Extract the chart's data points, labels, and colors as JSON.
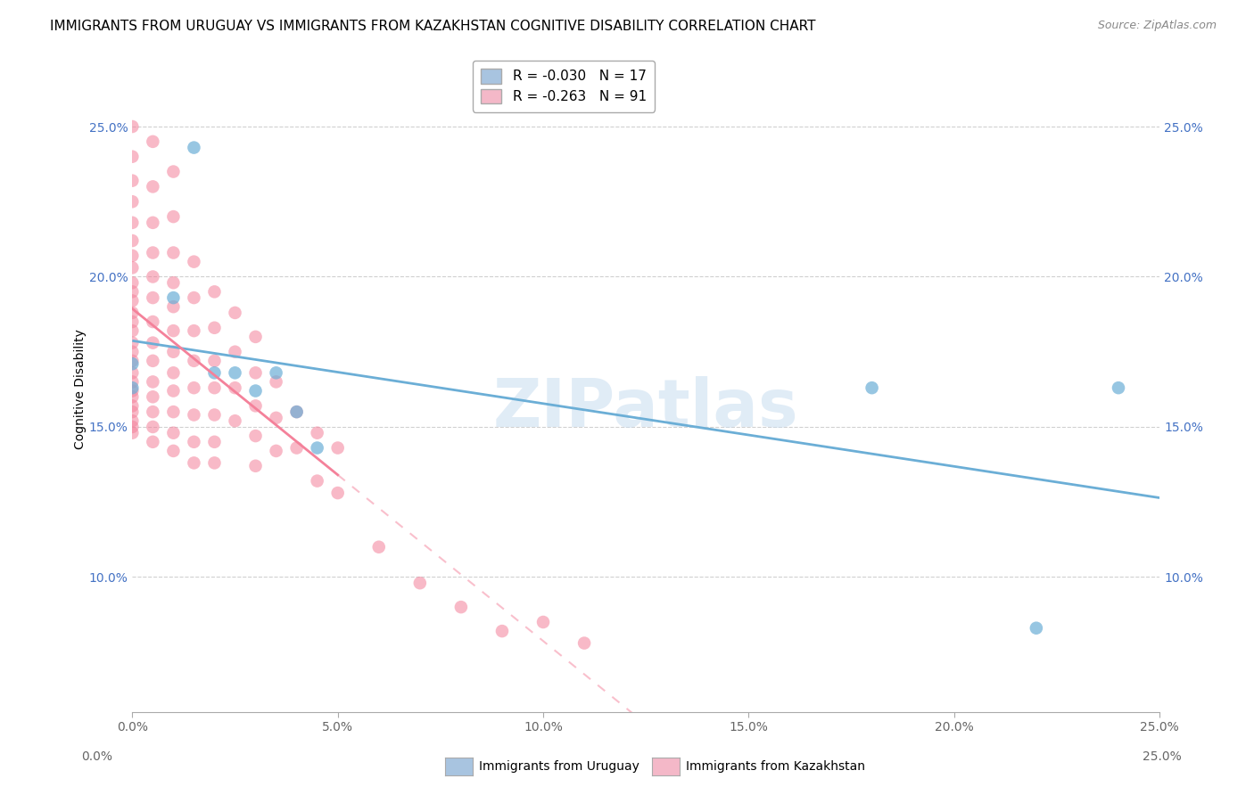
{
  "title": "IMMIGRANTS FROM URUGUAY VS IMMIGRANTS FROM KAZAKHSTAN COGNITIVE DISABILITY CORRELATION CHART",
  "source": "Source: ZipAtlas.com",
  "ylabel": "Cognitive Disability",
  "xlim": [
    0.0,
    0.25
  ],
  "ylim": [
    0.055,
    0.27
  ],
  "x_ticks": [
    0.0,
    0.05,
    0.1,
    0.15,
    0.2,
    0.25
  ],
  "x_tick_labels": [
    "0.0%",
    "5.0%",
    "10.0%",
    "15.0%",
    "20.0%",
    "25.0%"
  ],
  "y_ticks": [
    0.1,
    0.15,
    0.2,
    0.25
  ],
  "y_tick_labels": [
    "10.0%",
    "15.0%",
    "20.0%",
    "25.0%"
  ],
  "watermark": "ZIPatlas",
  "uruguay_color": "#6baed6",
  "kazakhstan_color": "#f4819a",
  "legend_uru_color": "#a8c4e0",
  "legend_kaz_color": "#f4b8c8",
  "uruguay_scatter": [
    [
      0.0,
      0.163
    ],
    [
      0.0,
      0.171
    ],
    [
      0.01,
      0.193
    ],
    [
      0.015,
      0.243
    ],
    [
      0.02,
      0.168
    ],
    [
      0.025,
      0.168
    ],
    [
      0.03,
      0.162
    ],
    [
      0.035,
      0.168
    ],
    [
      0.04,
      0.155
    ],
    [
      0.045,
      0.143
    ],
    [
      0.18,
      0.163
    ],
    [
      0.22,
      0.083
    ],
    [
      0.24,
      0.163
    ]
  ],
  "kazakhstan_scatter": [
    [
      0.0,
      0.25
    ],
    [
      0.0,
      0.24
    ],
    [
      0.0,
      0.232
    ],
    [
      0.0,
      0.225
    ],
    [
      0.0,
      0.218
    ],
    [
      0.0,
      0.212
    ],
    [
      0.0,
      0.207
    ],
    [
      0.0,
      0.203
    ],
    [
      0.0,
      0.198
    ],
    [
      0.0,
      0.195
    ],
    [
      0.0,
      0.192
    ],
    [
      0.0,
      0.188
    ],
    [
      0.0,
      0.185
    ],
    [
      0.0,
      0.182
    ],
    [
      0.0,
      0.178
    ],
    [
      0.0,
      0.175
    ],
    [
      0.0,
      0.172
    ],
    [
      0.0,
      0.168
    ],
    [
      0.0,
      0.165
    ],
    [
      0.0,
      0.162
    ],
    [
      0.0,
      0.16
    ],
    [
      0.0,
      0.157
    ],
    [
      0.0,
      0.155
    ],
    [
      0.0,
      0.152
    ],
    [
      0.0,
      0.15
    ],
    [
      0.0,
      0.148
    ],
    [
      0.005,
      0.245
    ],
    [
      0.005,
      0.23
    ],
    [
      0.005,
      0.218
    ],
    [
      0.005,
      0.208
    ],
    [
      0.005,
      0.2
    ],
    [
      0.005,
      0.193
    ],
    [
      0.005,
      0.185
    ],
    [
      0.005,
      0.178
    ],
    [
      0.005,
      0.172
    ],
    [
      0.005,
      0.165
    ],
    [
      0.005,
      0.16
    ],
    [
      0.005,
      0.155
    ],
    [
      0.005,
      0.15
    ],
    [
      0.005,
      0.145
    ],
    [
      0.01,
      0.235
    ],
    [
      0.01,
      0.22
    ],
    [
      0.01,
      0.208
    ],
    [
      0.01,
      0.198
    ],
    [
      0.01,
      0.19
    ],
    [
      0.01,
      0.182
    ],
    [
      0.01,
      0.175
    ],
    [
      0.01,
      0.168
    ],
    [
      0.01,
      0.162
    ],
    [
      0.01,
      0.155
    ],
    [
      0.01,
      0.148
    ],
    [
      0.01,
      0.142
    ],
    [
      0.015,
      0.205
    ],
    [
      0.015,
      0.193
    ],
    [
      0.015,
      0.182
    ],
    [
      0.015,
      0.172
    ],
    [
      0.015,
      0.163
    ],
    [
      0.015,
      0.154
    ],
    [
      0.015,
      0.145
    ],
    [
      0.015,
      0.138
    ],
    [
      0.02,
      0.195
    ],
    [
      0.02,
      0.183
    ],
    [
      0.02,
      0.172
    ],
    [
      0.02,
      0.163
    ],
    [
      0.02,
      0.154
    ],
    [
      0.02,
      0.145
    ],
    [
      0.02,
      0.138
    ],
    [
      0.025,
      0.188
    ],
    [
      0.025,
      0.175
    ],
    [
      0.025,
      0.163
    ],
    [
      0.025,
      0.152
    ],
    [
      0.03,
      0.18
    ],
    [
      0.03,
      0.168
    ],
    [
      0.03,
      0.157
    ],
    [
      0.03,
      0.147
    ],
    [
      0.03,
      0.137
    ],
    [
      0.035,
      0.165
    ],
    [
      0.035,
      0.153
    ],
    [
      0.035,
      0.142
    ],
    [
      0.04,
      0.155
    ],
    [
      0.04,
      0.143
    ],
    [
      0.045,
      0.148
    ],
    [
      0.045,
      0.132
    ],
    [
      0.05,
      0.143
    ],
    [
      0.05,
      0.128
    ],
    [
      0.06,
      0.11
    ],
    [
      0.07,
      0.098
    ],
    [
      0.08,
      0.09
    ],
    [
      0.09,
      0.082
    ],
    [
      0.1,
      0.085
    ],
    [
      0.11,
      0.078
    ]
  ],
  "background_color": "#ffffff",
  "grid_color": "#d0d0d0",
  "title_fontsize": 11,
  "axis_label_fontsize": 10,
  "tick_fontsize": 10,
  "tick_color_y": "#4472c4",
  "tick_color_x": "#666666"
}
